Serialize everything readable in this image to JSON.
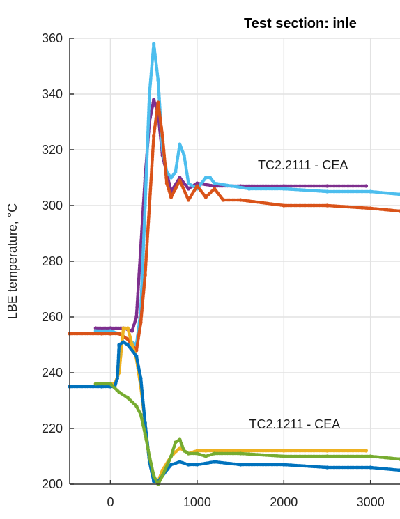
{
  "chart_data": {
    "type": "scatter",
    "title": "Test section: inle",
    "xlabel": "",
    "ylabel": "LBE temperature, °C",
    "xlim": [
      -470,
      3340
    ],
    "ylim": [
      200,
      360
    ],
    "x_ticks": [
      0,
      1000,
      2000,
      3000
    ],
    "y_ticks": [
      200,
      220,
      240,
      260,
      280,
      300,
      320,
      340,
      360
    ],
    "grid": true,
    "annotations": [
      {
        "text": "TC2.2111 - CEA",
        "x": 1700,
        "y": 313
      },
      {
        "text": "TC2.1211 - CEA",
        "x": 1600,
        "y": 220
      }
    ],
    "series": [
      {
        "color": "#7E2F8E",
        "x": [
          -170,
          0,
          150,
          250,
          300,
          350,
          400,
          450,
          500,
          550,
          600,
          700,
          800,
          900,
          1000,
          1200,
          1500,
          2000,
          2500,
          2950
        ],
        "y": [
          256,
          256,
          256,
          255,
          260,
          285,
          310,
          330,
          338,
          333,
          318,
          305,
          310,
          306,
          308,
          307,
          307,
          307,
          307,
          307
        ]
      },
      {
        "color": "#4DBEEE",
        "x": [
          -170,
          0,
          100,
          200,
          300,
          350,
          400,
          450,
          500,
          550,
          600,
          650,
          700,
          750,
          800,
          850,
          900,
          1000,
          1100,
          1150,
          1200,
          1400,
          1600,
          2000,
          2500,
          3000,
          3340
        ],
        "y": [
          255,
          255,
          254,
          252,
          250,
          262,
          300,
          340,
          358,
          345,
          320,
          312,
          310,
          312,
          322,
          318,
          308,
          306,
          310,
          310,
          308,
          307,
          306,
          306,
          305,
          305,
          304
        ]
      },
      {
        "color": "#D95319",
        "x": [
          -470,
          -100,
          0,
          100,
          200,
          300,
          350,
          400,
          450,
          500,
          550,
          600,
          650,
          700,
          750,
          800,
          900,
          1000,
          1100,
          1200,
          1300,
          1500,
          2000,
          2500,
          3000,
          3340
        ],
        "y": [
          254,
          254,
          254,
          254,
          252,
          248,
          258,
          275,
          300,
          325,
          337,
          325,
          308,
          303,
          306,
          309,
          302,
          307,
          303,
          306,
          302,
          302,
          300,
          300,
          299,
          298
        ]
      },
      {
        "color": "#EDB120",
        "x": [
          -170,
          0,
          50,
          100,
          150,
          200,
          250,
          300,
          350,
          400,
          450,
          500,
          550,
          600,
          700,
          800,
          900,
          1000,
          1100,
          1200,
          1500,
          2000,
          2500,
          2950
        ],
        "y": [
          236,
          236,
          236,
          240,
          256,
          256,
          250,
          245,
          235,
          222,
          208,
          202,
          201,
          205,
          210,
          213,
          211,
          212,
          212,
          212,
          212,
          212,
          212,
          212
        ]
      },
      {
        "color": "#0072BD",
        "x": [
          -470,
          -100,
          0,
          50,
          80,
          100,
          150,
          200,
          300,
          350,
          400,
          450,
          500,
          550,
          600,
          700,
          800,
          900,
          1000,
          1200,
          1500,
          2000,
          2500,
          3000,
          3340
        ],
        "y": [
          235,
          235,
          235,
          235,
          238,
          250,
          251,
          250,
          246,
          238,
          222,
          208,
          201,
          201,
          203,
          207,
          208,
          207,
          207,
          208,
          207,
          207,
          206,
          206,
          205
        ]
      },
      {
        "color": "#77AC30",
        "x": [
          -170,
          0,
          100,
          200,
          300,
          350,
          400,
          450,
          500,
          550,
          600,
          700,
          750,
          800,
          850,
          900,
          1000,
          1100,
          1200,
          1500,
          2000,
          2500,
          3000,
          3340
        ],
        "y": [
          236,
          236,
          233,
          231,
          228,
          225,
          218,
          210,
          203,
          200,
          203,
          210,
          215,
          216,
          212,
          211,
          211,
          210,
          211,
          211,
          210,
          210,
          210,
          209
        ]
      }
    ]
  }
}
